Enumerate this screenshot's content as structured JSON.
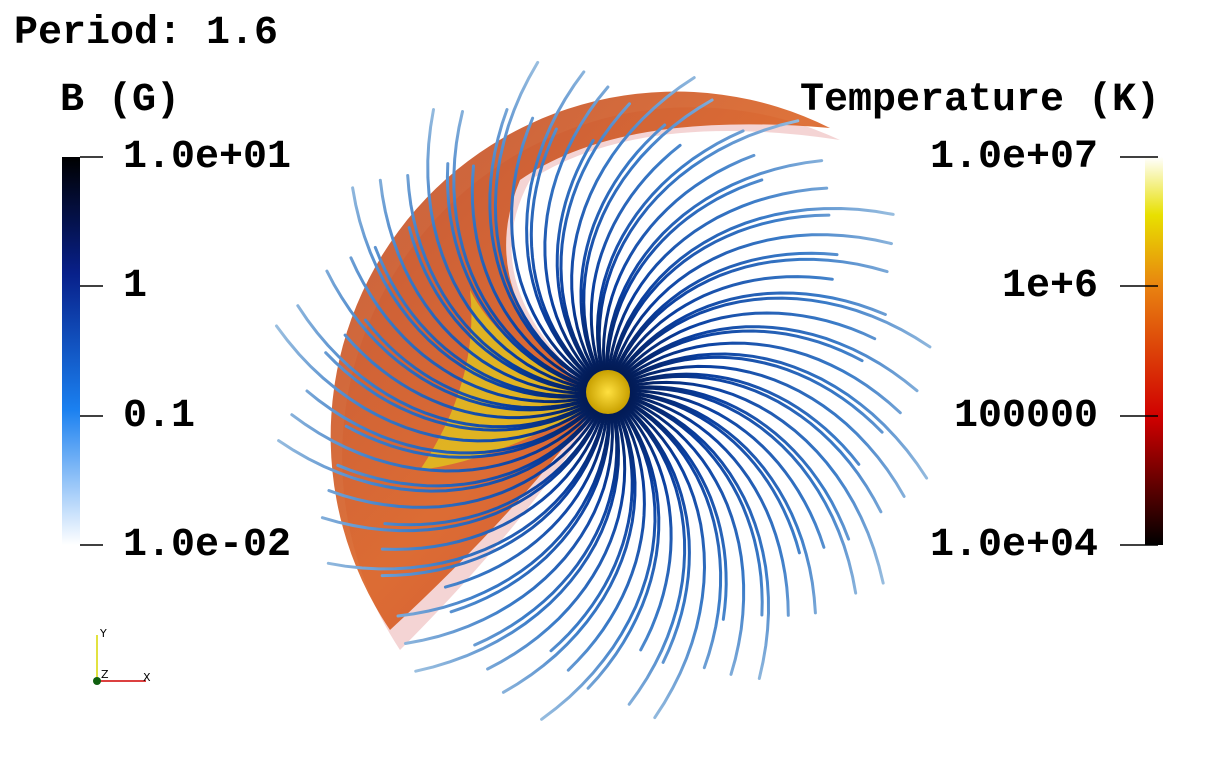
{
  "title": "Period: 1.6",
  "left_colorbar": {
    "title": "B (G)",
    "labels": [
      "1.0e+01",
      "1",
      "0.1",
      "1.0e-02"
    ]
  },
  "right_colorbar": {
    "title": "Temperature (K)",
    "labels": [
      "1.0e+07",
      "1e+6",
      "100000",
      "1.0e+04"
    ]
  },
  "axes": {
    "y": "Y",
    "z": "Z",
    "x": "X"
  }
}
